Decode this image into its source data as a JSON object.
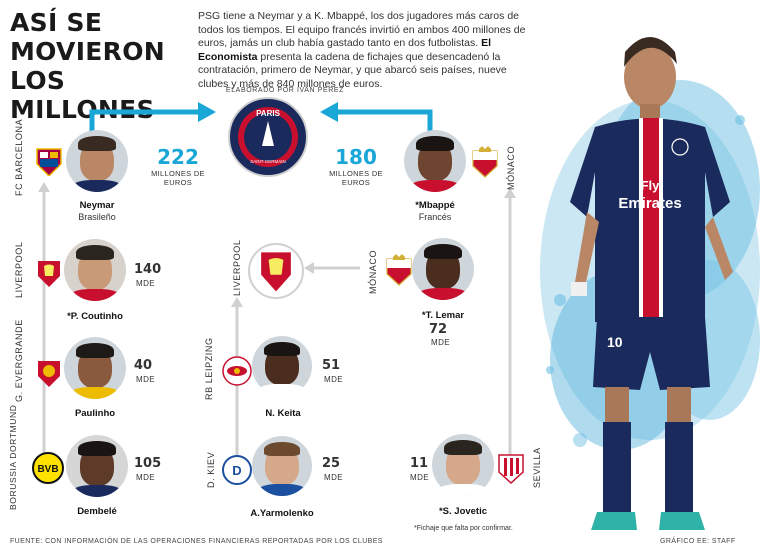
{
  "title": [
    "ASÍ SE",
    "MOVIERON",
    "LOS MILLONES"
  ],
  "intro": {
    "text1": "PSG tiene a Neymar y a K. Mbappé, los dos jugadores más caros de todos los tiempos. El equipo francés invirtió en ambos 400 millones de euros, jamás un club había gastado tanto en dos futbolistas. ",
    "bold": "El Economista",
    "text2": " presenta la cadena de fichajes que desencadenó la contratación, primero de Neymar, y que abarcó seis países, nueve clubes y más de 840 millones de euros."
  },
  "elaborado": "ELABORADO POR IVAN PÉREZ",
  "psg_crest": {
    "top": "PARIS",
    "bottom": "SAINT-GERMAIN"
  },
  "colors": {
    "accent": "#1aa6d6",
    "line": "#d0d0d0",
    "psg_navy": "#1b2a5c",
    "psg_red": "#c8102e"
  },
  "left_chain": [
    {
      "club": "FC BARCELONA",
      "name": "Neymar",
      "sub": "Brasileño",
      "fee": "222",
      "unit": "MILLONES DE EUROS"
    },
    {
      "club": "LIVERPOOL",
      "name": "*P. Coutinho",
      "fee": "140",
      "unit": "MDE"
    },
    {
      "club": "G. EVERGRANDE",
      "name": "Paulinho",
      "fee": "40",
      "unit": "MDE"
    },
    {
      "club": "BORUSSIA DORTMUND",
      "name": "Dembelé",
      "fee": "105",
      "unit": "MDE"
    }
  ],
  "middle_chain": [
    {
      "club": "LIVERPOOL"
    },
    {
      "club": "RB LEIPZING",
      "name": "N. Keita",
      "fee": "51",
      "unit": "MDE"
    },
    {
      "club": "D. KIEV",
      "name": "A.Yarmolenko",
      "fee": "25",
      "unit": "MDE"
    }
  ],
  "right_chain": [
    {
      "club": "MÓNACO",
      "name": "*Mbappé",
      "sub": "Francés",
      "fee": "180",
      "unit": "MILLONES DE EUROS"
    },
    {
      "club": "MÓNACO",
      "name": "*T. Lemar",
      "fee": "72",
      "unit": "MDE"
    },
    {
      "club": "SEVILLA",
      "name": "*S. Jovetic",
      "fee": "11",
      "unit": "MDE"
    }
  ],
  "note": "*Fichaje que falta por confirmar.",
  "footer": "FUENTE: CON INFORMACIÓN DE LAS OPERACIONES FINANCIERAS REPORTADAS POR LOS CLUBES",
  "credit": "GRÁFICO EE: STAFF",
  "player_shirt": {
    "sponsor_line1": "Fly",
    "sponsor_line2": "Emirates",
    "number": "10"
  }
}
